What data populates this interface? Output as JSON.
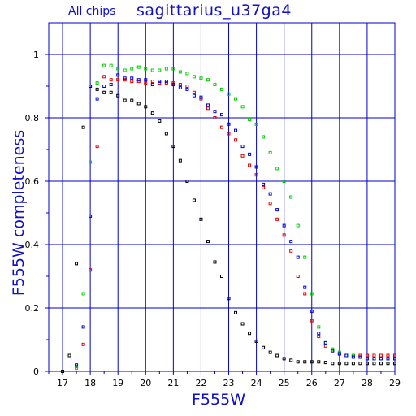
{
  "header": {
    "subtitle": "All chips",
    "title": "sagittarius_u37ga4"
  },
  "chart_data": {
    "type": "scatter",
    "title": "sagittarius_u37ga4",
    "subtitle": "All chips",
    "xlabel": "F555W",
    "ylabel": "F555W completeness",
    "xlim": [
      16.5,
      29
    ],
    "ylim": [
      0,
      1.1
    ],
    "xticks": [
      17,
      18,
      19,
      20,
      21,
      22,
      23,
      24,
      25,
      26,
      27,
      28,
      29
    ],
    "yticks": [
      0,
      0.2,
      0.4,
      0.6,
      0.8,
      1
    ],
    "ytick_labels": [
      "0",
      "0.2",
      "0.4",
      "0.6",
      "0.8",
      "1"
    ],
    "grid": true,
    "colors": {
      "axes": "#0000c8",
      "label": "#1010c8",
      "black": "#000000",
      "red": "#e00000",
      "green": "#00d000",
      "blue": "#0000e0"
    },
    "series": [
      {
        "color": "#000000",
        "points": [
          [
            17.0,
            0.0
          ],
          [
            17.25,
            0.05
          ],
          [
            17.5,
            0.34
          ],
          [
            17.75,
            0.77
          ],
          [
            18.0,
            0.9
          ],
          [
            18.25,
            0.89
          ],
          [
            18.5,
            0.88
          ],
          [
            18.75,
            0.88
          ],
          [
            19.0,
            0.87
          ],
          [
            19.25,
            0.855
          ],
          [
            19.5,
            0.855
          ],
          [
            19.75,
            0.845
          ],
          [
            20.0,
            0.835
          ],
          [
            20.25,
            0.815
          ],
          [
            20.5,
            0.79
          ],
          [
            20.75,
            0.75
          ],
          [
            21.0,
            0.71
          ],
          [
            21.25,
            0.665
          ],
          [
            21.5,
            0.6
          ],
          [
            21.75,
            0.54
          ],
          [
            22.0,
            0.48
          ],
          [
            22.25,
            0.41
          ],
          [
            22.5,
            0.345
          ],
          [
            22.75,
            0.3
          ],
          [
            23.0,
            0.23
          ],
          [
            23.25,
            0.185
          ],
          [
            23.5,
            0.15
          ],
          [
            23.75,
            0.12
          ],
          [
            24.0,
            0.095
          ],
          [
            24.25,
            0.075
          ],
          [
            24.5,
            0.06
          ],
          [
            24.75,
            0.05
          ],
          [
            25.0,
            0.04
          ],
          [
            25.25,
            0.035
          ],
          [
            25.5,
            0.03
          ],
          [
            25.75,
            0.03
          ],
          [
            26.0,
            0.03
          ],
          [
            26.25,
            0.03
          ],
          [
            26.5,
            0.028
          ],
          [
            26.75,
            0.025
          ],
          [
            27.0,
            0.025
          ],
          [
            27.25,
            0.025
          ],
          [
            27.5,
            0.025
          ],
          [
            27.75,
            0.025
          ],
          [
            28.0,
            0.025
          ],
          [
            28.25,
            0.025
          ],
          [
            28.5,
            0.025
          ],
          [
            28.75,
            0.025
          ],
          [
            29.0,
            0.025
          ]
        ]
      },
      {
        "color": "#e00000",
        "points": [
          [
            17.5,
            0.015
          ],
          [
            17.75,
            0.085
          ],
          [
            18.0,
            0.32
          ],
          [
            18.25,
            0.71
          ],
          [
            18.5,
            0.93
          ],
          [
            18.75,
            0.92
          ],
          [
            19.0,
            0.92
          ],
          [
            19.25,
            0.92
          ],
          [
            19.5,
            0.915
          ],
          [
            19.75,
            0.915
          ],
          [
            20.0,
            0.91
          ],
          [
            20.25,
            0.915
          ],
          [
            20.5,
            0.91
          ],
          [
            20.75,
            0.91
          ],
          [
            21.0,
            0.91
          ],
          [
            21.25,
            0.905
          ],
          [
            21.5,
            0.9
          ],
          [
            21.75,
            0.88
          ],
          [
            22.0,
            0.86
          ],
          [
            22.25,
            0.83
          ],
          [
            22.5,
            0.8
          ],
          [
            22.75,
            0.77
          ],
          [
            23.0,
            0.75
          ],
          [
            23.25,
            0.73
          ],
          [
            23.5,
            0.68
          ],
          [
            23.75,
            0.65
          ],
          [
            24.0,
            0.62
          ],
          [
            24.25,
            0.58
          ],
          [
            24.5,
            0.53
          ],
          [
            24.75,
            0.48
          ],
          [
            25.0,
            0.43
          ],
          [
            25.25,
            0.38
          ],
          [
            25.5,
            0.3
          ],
          [
            25.75,
            0.245
          ],
          [
            26.0,
            0.16
          ],
          [
            26.25,
            0.11
          ],
          [
            26.5,
            0.08
          ],
          [
            26.75,
            0.065
          ],
          [
            27.0,
            0.055
          ],
          [
            27.25,
            0.05
          ],
          [
            27.5,
            0.05
          ],
          [
            27.75,
            0.05
          ],
          [
            28.0,
            0.05
          ],
          [
            28.25,
            0.05
          ],
          [
            28.5,
            0.05
          ],
          [
            28.75,
            0.05
          ],
          [
            29.0,
            0.05
          ]
        ]
      },
      {
        "color": "#00d000",
        "points": [
          [
            17.5,
            0.01
          ],
          [
            17.75,
            0.245
          ],
          [
            18.0,
            0.66
          ],
          [
            18.25,
            0.91
          ],
          [
            18.5,
            0.965
          ],
          [
            18.75,
            0.965
          ],
          [
            19.0,
            0.955
          ],
          [
            19.25,
            0.95
          ],
          [
            19.5,
            0.955
          ],
          [
            19.75,
            0.96
          ],
          [
            20.0,
            0.955
          ],
          [
            20.25,
            0.95
          ],
          [
            20.5,
            0.95
          ],
          [
            20.75,
            0.955
          ],
          [
            21.0,
            0.955
          ],
          [
            21.25,
            0.945
          ],
          [
            21.5,
            0.94
          ],
          [
            21.75,
            0.93
          ],
          [
            22.0,
            0.925
          ],
          [
            22.25,
            0.92
          ],
          [
            22.5,
            0.905
          ],
          [
            22.75,
            0.89
          ],
          [
            23.0,
            0.875
          ],
          [
            23.25,
            0.86
          ],
          [
            23.5,
            0.835
          ],
          [
            23.75,
            0.795
          ],
          [
            24.0,
            0.78
          ],
          [
            24.25,
            0.74
          ],
          [
            24.5,
            0.69
          ],
          [
            24.75,
            0.64
          ],
          [
            25.0,
            0.6
          ],
          [
            25.25,
            0.55
          ],
          [
            25.5,
            0.46
          ],
          [
            25.75,
            0.36
          ],
          [
            26.0,
            0.245
          ],
          [
            26.25,
            0.14
          ],
          [
            26.5,
            0.09
          ],
          [
            26.75,
            0.07
          ],
          [
            27.0,
            0.06
          ],
          [
            27.25,
            0.05
          ],
          [
            27.5,
            0.05
          ],
          [
            27.75,
            0.045
          ],
          [
            28.0,
            0.04
          ],
          [
            28.25,
            0.04
          ],
          [
            28.5,
            0.04
          ],
          [
            28.75,
            0.04
          ],
          [
            29.0,
            0.04
          ]
        ]
      },
      {
        "color": "#0000e0",
        "points": [
          [
            17.5,
            0.02
          ],
          [
            17.75,
            0.14
          ],
          [
            18.0,
            0.49
          ],
          [
            18.25,
            0.86
          ],
          [
            18.5,
            0.9
          ],
          [
            18.75,
            0.905
          ],
          [
            19.0,
            0.935
          ],
          [
            19.25,
            0.925
          ],
          [
            19.5,
            0.925
          ],
          [
            19.75,
            0.92
          ],
          [
            20.0,
            0.92
          ],
          [
            20.25,
            0.905
          ],
          [
            20.5,
            0.915
          ],
          [
            20.75,
            0.915
          ],
          [
            21.0,
            0.905
          ],
          [
            21.25,
            0.895
          ],
          [
            21.5,
            0.89
          ],
          [
            21.75,
            0.87
          ],
          [
            22.0,
            0.865
          ],
          [
            22.25,
            0.84
          ],
          [
            22.5,
            0.82
          ],
          [
            22.75,
            0.81
          ],
          [
            23.0,
            0.78
          ],
          [
            23.25,
            0.76
          ],
          [
            23.5,
            0.71
          ],
          [
            23.75,
            0.685
          ],
          [
            24.0,
            0.645
          ],
          [
            24.25,
            0.59
          ],
          [
            24.5,
            0.56
          ],
          [
            24.75,
            0.51
          ],
          [
            25.0,
            0.46
          ],
          [
            25.25,
            0.41
          ],
          [
            25.5,
            0.36
          ],
          [
            25.75,
            0.265
          ],
          [
            26.0,
            0.19
          ],
          [
            26.25,
            0.12
          ],
          [
            26.5,
            0.09
          ],
          [
            26.75,
            0.065
          ],
          [
            27.0,
            0.055
          ],
          [
            27.25,
            0.05
          ],
          [
            27.5,
            0.045
          ],
          [
            27.75,
            0.045
          ],
          [
            28.0,
            0.04
          ],
          [
            28.25,
            0.04
          ],
          [
            28.5,
            0.04
          ],
          [
            28.75,
            0.04
          ],
          [
            29.0,
            0.04
          ]
        ]
      }
    ]
  }
}
